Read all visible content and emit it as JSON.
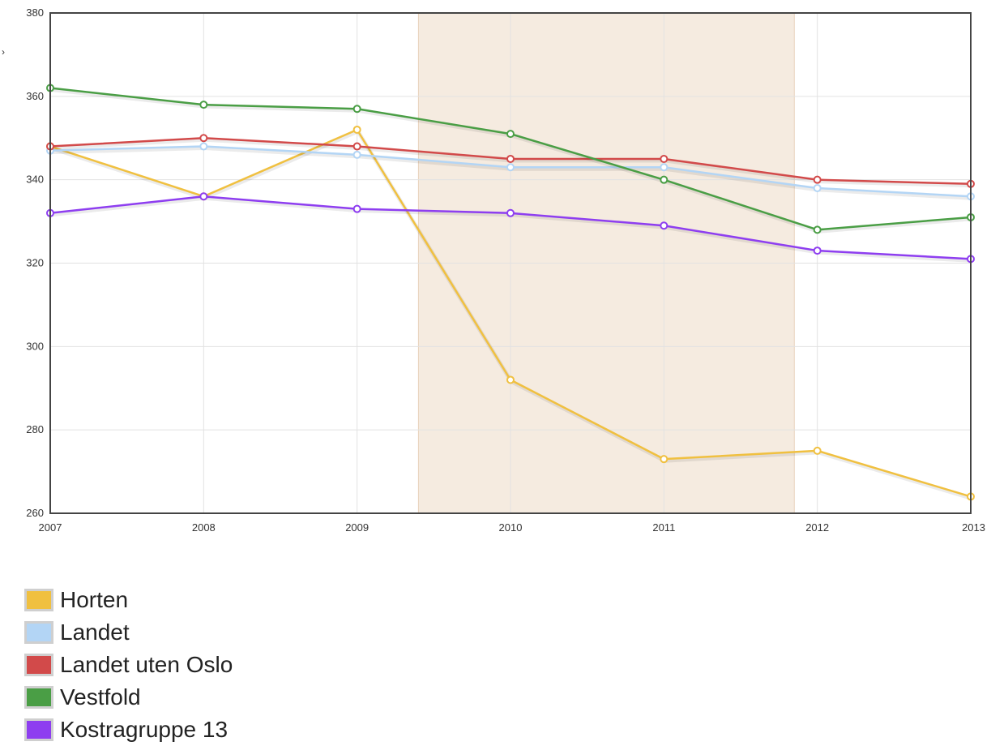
{
  "chart_data": {
    "type": "line",
    "x": [
      2007,
      2008,
      2009,
      2010,
      2011,
      2012,
      2013
    ],
    "xlim": [
      2007,
      2013
    ],
    "ylim": [
      260,
      380
    ],
    "yticks": [
      260,
      280,
      300,
      320,
      340,
      360,
      380
    ],
    "grid": true,
    "legend_position": "bottom-left",
    "highlight_band": {
      "x_start": 2009.4,
      "x_end": 2011.85,
      "color": "#f5ebe0"
    },
    "edge_mark": "›",
    "series": [
      {
        "name": "Horten",
        "color": "#f0c040",
        "values": [
          348,
          336,
          352,
          292,
          273,
          275,
          264
        ]
      },
      {
        "name": "Landet",
        "color": "#b3d5f5",
        "values": [
          347,
          348,
          346,
          343,
          343,
          338,
          336
        ]
      },
      {
        "name": "Landet uten Oslo",
        "color": "#d24a4a",
        "values": [
          348,
          350,
          348,
          345,
          345,
          340,
          339
        ]
      },
      {
        "name": "Vestfold",
        "color": "#4a9e45",
        "values": [
          362,
          358,
          357,
          351,
          340,
          328,
          331
        ]
      },
      {
        "name": "Kostragruppe 13",
        "color": "#8e3ef0",
        "values": [
          332,
          336,
          333,
          332,
          329,
          323,
          321
        ]
      }
    ]
  }
}
